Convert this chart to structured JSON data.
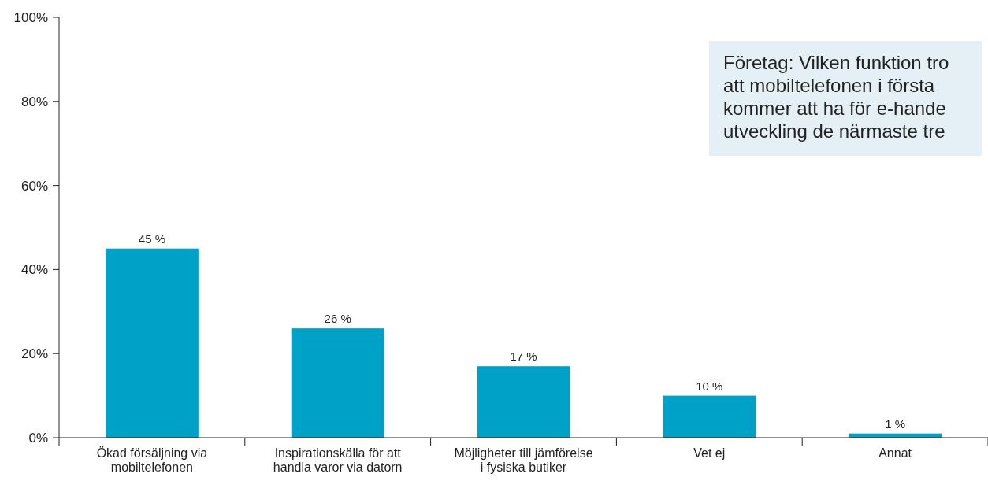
{
  "chart_data": {
    "type": "bar",
    "title": "Företag: Vilken funktion tro\natt mobiltelefonen i första\nkommer att ha för e-hande\nutveckling de närmaste tre",
    "categories": [
      "Ökad försäljning via\nmobiltelefonen",
      "Inspirationskälla för att\nhandla varor via datorn",
      "Möjligheter till jämförelse\ni fysiska butiker",
      "Vet ej",
      "Annat"
    ],
    "values": [
      45,
      26,
      17,
      10,
      1
    ],
    "value_labels": [
      "45 %",
      "26 %",
      "17 %",
      "10 %",
      "1 %"
    ],
    "color": "#00a1c6",
    "ylim": [
      0,
      100
    ],
    "yticks": [
      {
        "value": 0,
        "label": "0%"
      },
      {
        "value": 20,
        "label": "20%"
      },
      {
        "value": 40,
        "label": "40%"
      },
      {
        "value": 60,
        "label": "60%"
      },
      {
        "value": 80,
        "label": "80%"
      },
      {
        "value": 100,
        "label": "100%"
      }
    ],
    "grid": false
  }
}
